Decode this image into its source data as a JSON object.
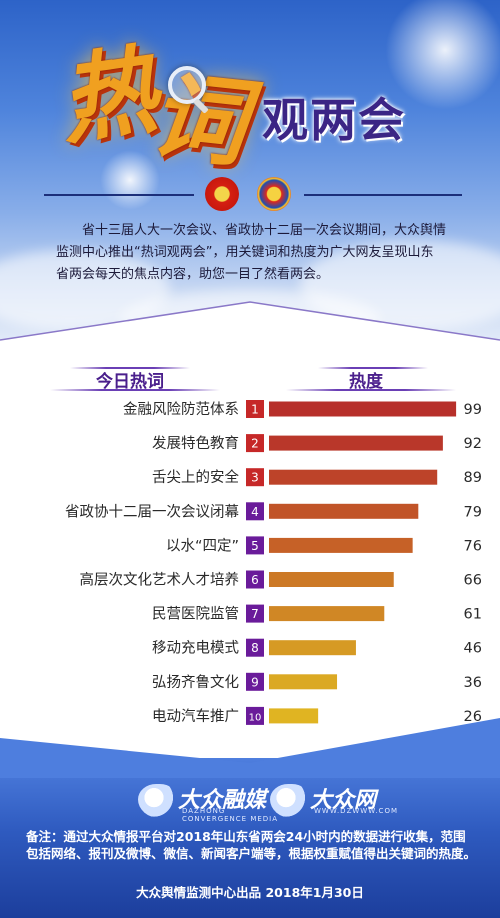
{
  "header": {
    "logo_word_1": "热",
    "logo_word_2": "词",
    "title": "观两会",
    "intro": "省十三届人大一次会议、省政协十二届一次会议期间，大众舆情监测中心推出“热词观两会”，用关键词和热度为广大网友呈现山东省两会每天的焦点内容，助您一目了然看两会。"
  },
  "chart_data": {
    "type": "bar",
    "orientation": "horizontal",
    "column_headers": {
      "term": "今日热词",
      "heat": "热度"
    },
    "categories": [
      "金融风险防范体系",
      "发展特色教育",
      "舌尖上的安全",
      "省政协十二届一次会议闭幕",
      "以水“四定”",
      "高层次文化艺术人才培养",
      "民营医院监管",
      "移动充电模式",
      "弘扬齐鲁文化",
      "电动汽车推广"
    ],
    "ranks": [
      "1",
      "2",
      "3",
      "4",
      "5",
      "6",
      "7",
      "8",
      "9",
      "10"
    ],
    "values": [
      99,
      92,
      89,
      79,
      76,
      66,
      61,
      46,
      36,
      26
    ],
    "xlim": [
      0,
      100
    ],
    "bar_colors": [
      "#b7302a",
      "#b9372a",
      "#bd4329",
      "#c15428",
      "#c66127",
      "#cc7926",
      "#d08725",
      "#d69a24",
      "#dba923",
      "#e0b422"
    ],
    "rank_colors": [
      "#c62828",
      "#c62828",
      "#c62828",
      "#6a1b9a",
      "#6a1b9a",
      "#6a1b9a",
      "#6a1b9a",
      "#6a1b9a",
      "#6a1b9a",
      "#6a1b9a"
    ]
  },
  "footer": {
    "brand_1": {
      "main": "大众融媒",
      "sub_1": "DAZHONG",
      "sub_2": "CONVERGENCE MEDIA"
    },
    "brand_2": {
      "main": "大众网",
      "sub_1": "WWW.DZWWW.COM"
    },
    "note": "备注：通过大众情报平台对2018年山东省两会24小时内的数据进行收集，范围包括网络、报刊及微博、微信、新闻客户端等，根据权重赋值得出关键词的热度。",
    "credit": "大众舆情监测中心出品 2018年1月30日"
  }
}
